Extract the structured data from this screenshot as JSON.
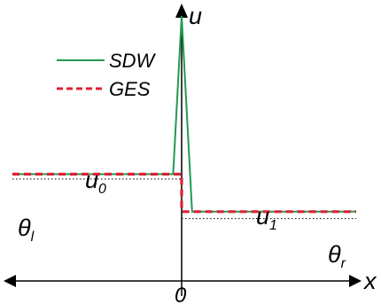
{
  "chart_data": {
    "type": "line",
    "xlabel": "x",
    "ylabel": "u",
    "origin_label": "0",
    "grid": false,
    "legend": {
      "placement": "top-left",
      "entries": [
        {
          "label": "SDW",
          "color": "#229955",
          "style": "solid"
        },
        {
          "label": "GES",
          "color": "#dd2233",
          "style": "dashed"
        }
      ]
    },
    "annotations": {
      "u_left": {
        "base": "u",
        "sub": "0"
      },
      "u_right": {
        "base": "u",
        "sub": "1"
      },
      "theta_left": {
        "base": "θ",
        "sub": "l"
      },
      "theta_right": {
        "base": "θ",
        "sub": "r"
      }
    },
    "xlim": [
      -1,
      1
    ],
    "ylim": [
      -0.5,
      2.1
    ],
    "levels": {
      "u0": 0.5,
      "u1": 0.12,
      "theta_l": 0.45,
      "theta_r": 0.05
    },
    "series": [
      {
        "name": "SDW",
        "color": "#229955",
        "x": [
          -1,
          -0.05,
          0,
          0.06,
          0.12,
          1
        ],
        "y": [
          0.5,
          0.5,
          2.1,
          0.12,
          0.12,
          0.12
        ]
      },
      {
        "name": "GES",
        "color": "#dd2233",
        "x": [
          -1,
          0,
          0,
          1
        ],
        "y": [
          0.5,
          0.5,
          0.12,
          0.12
        ]
      }
    ]
  }
}
